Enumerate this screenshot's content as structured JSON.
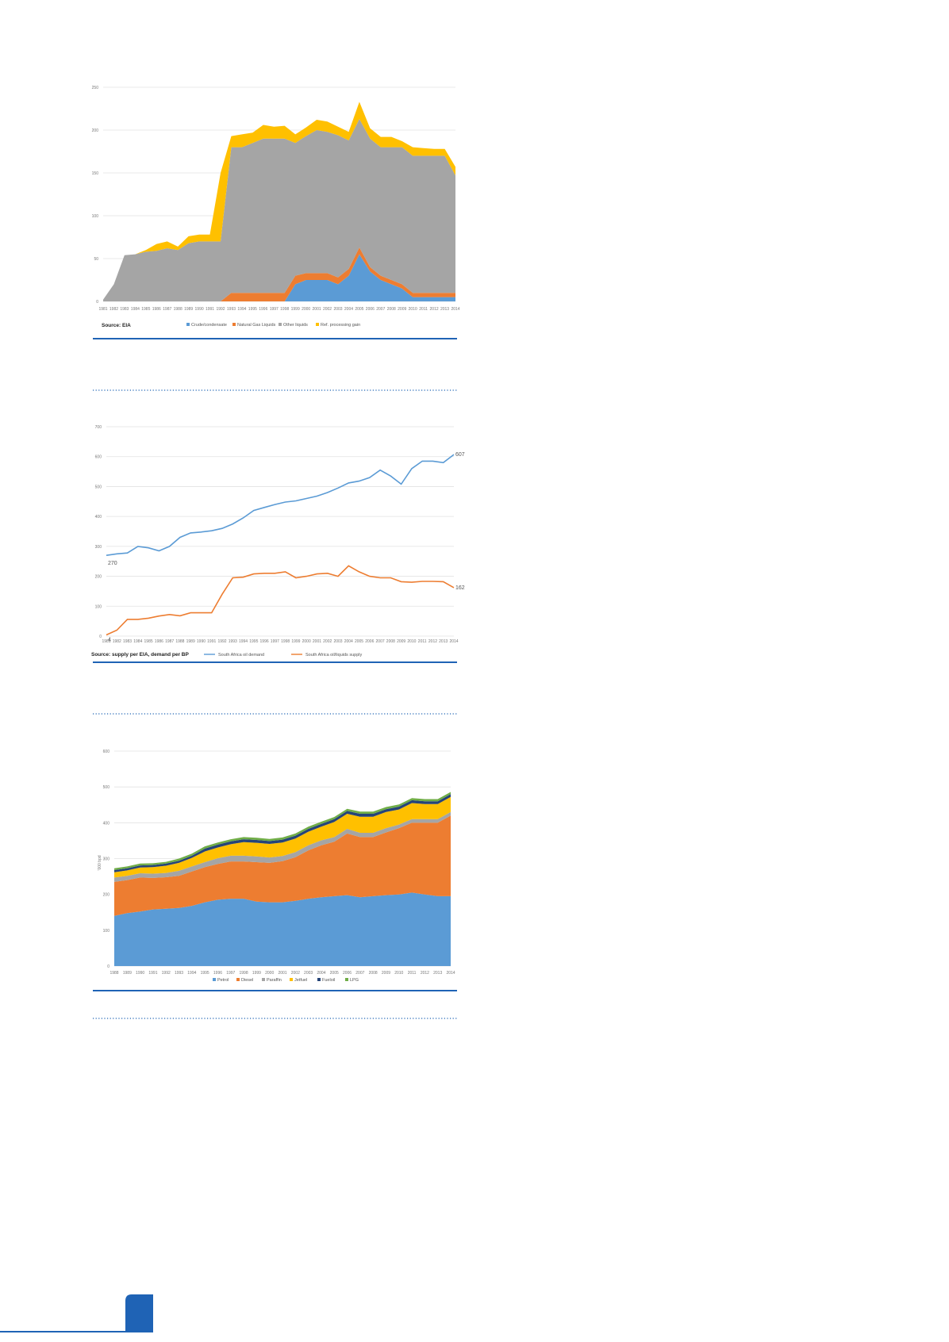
{
  "colors": {
    "rule_blue": "#1f63b5",
    "dotted": "#1f63b5",
    "page_tab": "#1f63b5",
    "grid": "#e2e2e2"
  },
  "chart_data": [
    {
      "type": "area",
      "stacked": true,
      "title": "",
      "xlabel": "",
      "ylabel": "",
      "ylim": [
        0,
        250
      ],
      "yticks": [
        0,
        50,
        100,
        150,
        200,
        250
      ],
      "grid": true,
      "legend_position": "bottom",
      "source": "Source: EIA",
      "x": [
        "1981",
        "1982",
        "1983",
        "1984",
        "1985",
        "1986",
        "1987",
        "1988",
        "1989",
        "1990",
        "1991",
        "1992",
        "1993",
        "1994",
        "1995",
        "1996",
        "1997",
        "1998",
        "1999",
        "2000",
        "2001",
        "2002",
        "2003",
        "2004",
        "2005",
        "2006",
        "2007",
        "2008",
        "2009",
        "2010",
        "2011",
        "2012",
        "2013",
        "2014"
      ],
      "series": [
        {
          "name": "Crude/condensate",
          "color": "#5b9bd5",
          "values": [
            0,
            0,
            0,
            0,
            0,
            0,
            0,
            0,
            0,
            0,
            0,
            0,
            0,
            0,
            0,
            0,
            0,
            0,
            20,
            25,
            25,
            25,
            20,
            30,
            55,
            35,
            25,
            20,
            15,
            5,
            5,
            5,
            5,
            5
          ]
        },
        {
          "name": "Natural Gas Liquids",
          "color": "#ed7d31",
          "values": [
            0,
            0,
            0,
            0,
            0,
            0,
            0,
            0,
            0,
            0,
            0,
            0,
            10,
            10,
            10,
            10,
            10,
            10,
            10,
            8,
            8,
            8,
            8,
            8,
            8,
            5,
            5,
            5,
            5,
            5,
            5,
            5,
            5,
            5
          ]
        },
        {
          "name": "Other liquids",
          "color": "#a5a5a5",
          "values": [
            2,
            20,
            54,
            55,
            58,
            59,
            62,
            60,
            68,
            70,
            70,
            70,
            170,
            170,
            175,
            180,
            180,
            180,
            155,
            160,
            167,
            165,
            166,
            150,
            150,
            150,
            150,
            155,
            160,
            160,
            160,
            160,
            160,
            137
          ]
        },
        {
          "name": "Ref. processing gain",
          "color": "#ffc000",
          "values": [
            0,
            0,
            0,
            0,
            2,
            8,
            8,
            4,
            8,
            8,
            8,
            80,
            13,
            15,
            12,
            16,
            14,
            15,
            10,
            10,
            12,
            12,
            10,
            10,
            20,
            12,
            12,
            12,
            7,
            10,
            9,
            8,
            8,
            10
          ]
        }
      ]
    },
    {
      "type": "line",
      "title": "",
      "xlabel": "",
      "ylabel": "",
      "ylim": [
        0,
        700
      ],
      "yticks": [
        0,
        100,
        200,
        300,
        400,
        500,
        600,
        700
      ],
      "grid": true,
      "legend_position": "bottom",
      "source": "Source: supply per EIA, demand per BP",
      "x": [
        "1981",
        "1982",
        "1983",
        "1984",
        "1985",
        "1986",
        "1987",
        "1988",
        "1989",
        "1990",
        "1991",
        "1992",
        "1993",
        "1994",
        "1995",
        "1996",
        "1997",
        "1998",
        "1999",
        "2000",
        "2001",
        "2002",
        "2003",
        "2004",
        "2005",
        "2006",
        "2007",
        "2008",
        "2009",
        "2010",
        "2011",
        "2012",
        "2013",
        "2014"
      ],
      "series": [
        {
          "name": "South Africa oil demand",
          "color": "#5b9bd5",
          "values": [
            270,
            275,
            278,
            300,
            295,
            285,
            300,
            330,
            345,
            348,
            352,
            360,
            375,
            395,
            420,
            430,
            440,
            448,
            452,
            460,
            468,
            480,
            495,
            512,
            518,
            530,
            555,
            535,
            508,
            560,
            585,
            585,
            580,
            607
          ]
        },
        {
          "name": "South Africa oil/liquids supply",
          "color": "#ed7d31",
          "values": [
            4,
            20,
            56,
            56,
            60,
            67,
            72,
            68,
            78,
            78,
            78,
            140,
            195,
            197,
            208,
            210,
            210,
            215,
            195,
            200,
            208,
            210,
            200,
            235,
            215,
            200,
            195,
            195,
            182,
            180,
            183,
            183,
            182,
            162
          ]
        }
      ],
      "data_labels": [
        {
          "text": "270",
          "series": 0,
          "index": 0
        },
        {
          "text": "607",
          "series": 0,
          "index": 33
        },
        {
          "text": "4",
          "series": 1,
          "index": 0
        },
        {
          "text": "162",
          "series": 1,
          "index": 33
        }
      ]
    },
    {
      "type": "area",
      "stacked": true,
      "title": "",
      "xlabel": "",
      "ylabel": "'000 bpd",
      "ylim": [
        0,
        600
      ],
      "yticks": [
        0,
        100,
        200,
        300,
        400,
        500,
        600
      ],
      "grid": true,
      "legend_position": "bottom",
      "source": "",
      "x": [
        "1988",
        "1989",
        "1990",
        "1991",
        "1992",
        "1993",
        "1994",
        "1995",
        "1996",
        "1997",
        "1998",
        "1999",
        "2000",
        "2001",
        "2002",
        "2003",
        "2004",
        "2005",
        "2006",
        "2007",
        "2008",
        "2009",
        "2010",
        "2011",
        "2012",
        "2013",
        "2014"
      ],
      "series": [
        {
          "name": "Petrol",
          "color": "#5b9bd5",
          "values": [
            140,
            148,
            152,
            158,
            160,
            162,
            168,
            178,
            185,
            188,
            188,
            180,
            178,
            178,
            182,
            188,
            192,
            195,
            198,
            192,
            195,
            198,
            200,
            205,
            200,
            195,
            195
          ]
        },
        {
          "name": "Diesel",
          "color": "#ed7d31",
          "values": [
            95,
            92,
            95,
            88,
            88,
            90,
            96,
            98,
            100,
            104,
            104,
            110,
            110,
            115,
            122,
            135,
            145,
            152,
            172,
            168,
            165,
            175,
            185,
            195,
            200,
            205,
            225
          ]
        },
        {
          "name": "Paraffin",
          "color": "#a5a5a5",
          "values": [
            12,
            12,
            12,
            12,
            12,
            14,
            14,
            14,
            16,
            16,
            16,
            16,
            15,
            14,
            14,
            14,
            14,
            13,
            13,
            12,
            12,
            12,
            10,
            10,
            10,
            10,
            10
          ]
        },
        {
          "name": "Jetfuel",
          "color": "#ffc000",
          "values": [
            15,
            15,
            16,
            18,
            20,
            22,
            24,
            30,
            30,
            32,
            38,
            38,
            38,
            38,
            38,
            38,
            38,
            42,
            42,
            45,
            45,
            45,
            42,
            45,
            42,
            42,
            42
          ]
        },
        {
          "name": "Fueloil",
          "color": "#264478",
          "values": [
            6,
            6,
            6,
            6,
            6,
            6,
            6,
            8,
            8,
            8,
            8,
            8,
            8,
            8,
            8,
            8,
            8,
            8,
            8,
            8,
            8,
            8,
            8,
            8,
            8,
            8,
            8
          ]
        },
        {
          "name": "LPG",
          "color": "#70ad47",
          "values": [
            5,
            5,
            5,
            5,
            5,
            6,
            6,
            6,
            6,
            6,
            6,
            6,
            6,
            6,
            6,
            6,
            6,
            6,
            6,
            6,
            6,
            6,
            6,
            6,
            6,
            6,
            6
          ]
        }
      ]
    }
  ]
}
